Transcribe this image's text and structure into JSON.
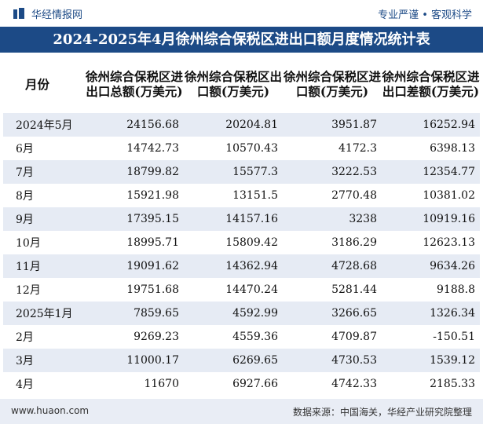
{
  "header": {
    "brand": "华经情报网",
    "tagline": "专业严谨 • 客观科学"
  },
  "title": "2024-2025年4月徐州综合保税区进出口额月度情况统计表",
  "table": {
    "headers": [
      "月份",
      "徐州综合保税区进出口总额(万美元)",
      "徐州综合保税区出口额(万美元)",
      "徐州综合保税区进口额(万美元)",
      "徐州综合保税区进出口差额(万美元)"
    ],
    "rows": [
      [
        "2024年5月",
        "24156.68",
        "20204.81",
        "3951.87",
        "16252.94"
      ],
      [
        "6月",
        "14742.73",
        "10570.43",
        "4172.3",
        "6398.13"
      ],
      [
        "7月",
        "18799.82",
        "15577.3",
        "3222.53",
        "12354.77"
      ],
      [
        "8月",
        "15921.98",
        "13151.5",
        "2770.48",
        "10381.02"
      ],
      [
        "9月",
        "17395.15",
        "14157.16",
        "3238",
        "10919.16"
      ],
      [
        "10月",
        "18995.71",
        "15809.42",
        "3186.29",
        "12623.13"
      ],
      [
        "11月",
        "19091.62",
        "14362.94",
        "4728.68",
        "9634.26"
      ],
      [
        "12月",
        "19751.68",
        "14470.24",
        "5281.44",
        "9188.8"
      ],
      [
        "2025年1月",
        "7859.65",
        "4592.99",
        "3266.65",
        "1326.34"
      ],
      [
        "2月",
        "9269.23",
        "4559.36",
        "4709.87",
        "-150.51"
      ],
      [
        "3月",
        "11000.17",
        "6269.65",
        "4730.53",
        "1539.12"
      ],
      [
        "4月",
        "11670",
        "6927.66",
        "4742.33",
        "2185.33"
      ]
    ]
  },
  "footer": {
    "url": "www.huaon.com",
    "source": "数据来源：中国海关，华经产业研究院整理"
  }
}
